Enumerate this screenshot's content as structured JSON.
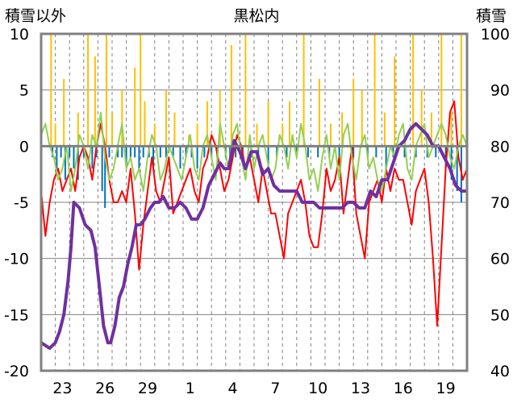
{
  "chart_data": {
    "type": "line",
    "title": "黒松内",
    "left_axis_label": "積雪以外",
    "right_axis_label": "積雪",
    "ylim_left": [
      -20,
      10
    ],
    "ylim_right": [
      40,
      100
    ],
    "yticks_left": [
      "10",
      "5",
      "0",
      "-5",
      "-10",
      "-15",
      "-20"
    ],
    "yticks_right": [
      "100",
      "90",
      "80",
      "70",
      "60",
      "50",
      "40"
    ],
    "x_range": [
      0,
      30
    ],
    "x_ticks": [
      {
        "x": 1.5,
        "label": "23"
      },
      {
        "x": 4.5,
        "label": "26"
      },
      {
        "x": 7.5,
        "label": "29"
      },
      {
        "x": 10.5,
        "label": "1"
      },
      {
        "x": 13.5,
        "label": "4"
      },
      {
        "x": 16.5,
        "label": "7"
      },
      {
        "x": 19.5,
        "label": "10"
      },
      {
        "x": 22.5,
        "label": "13"
      },
      {
        "x": 25.5,
        "label": "16"
      },
      {
        "x": 28.5,
        "label": "19"
      }
    ],
    "grid": true,
    "colors": {
      "temp_max": "#ff0000",
      "temp_min": "#92d050",
      "precipitation": "#ffc000",
      "snow_change": "#0070c0",
      "snow_depth": "#7030a0",
      "zero_line": "#808080",
      "grid": "#808080",
      "frame": "#808080"
    },
    "series": [
      {
        "key": "snow_depth",
        "axis": "right",
        "style": "line",
        "width": 4,
        "x": [
          0.0,
          0.6,
          1.0,
          1.3,
          1.6,
          1.9,
          2.1,
          2.3,
          2.7,
          3.1,
          3.5,
          3.8,
          4.1,
          4.4,
          4.7,
          4.9,
          5.2,
          5.5,
          5.8,
          6.1,
          6.4,
          6.7,
          7.0,
          7.3,
          7.7,
          8.0,
          8.3,
          8.6,
          9.0,
          9.4,
          9.8,
          10.2,
          10.6,
          11.0,
          11.4,
          11.8,
          12.2,
          12.6,
          12.9,
          13.2,
          13.6,
          14.0,
          14.4,
          14.8,
          15.2,
          15.6,
          16.0,
          16.4,
          16.8,
          17.2,
          17.6,
          18.0,
          18.4,
          18.8,
          19.2,
          19.6,
          20.0,
          20.4,
          20.8,
          21.2,
          21.6,
          22.0,
          22.4,
          22.8,
          23.2,
          23.6,
          24.0,
          24.4,
          24.8,
          25.2,
          25.6,
          26.0,
          26.4,
          26.8,
          27.2,
          27.6,
          28.0,
          28.4,
          28.8,
          29.2,
          29.6,
          30.0
        ],
        "values": [
          45,
          44,
          45,
          47,
          50,
          56,
          62,
          70,
          69,
          66,
          65,
          62,
          55,
          48,
          45,
          45,
          48,
          53,
          55,
          59,
          62,
          66,
          66,
          67,
          69,
          70,
          70,
          71,
          69,
          69,
          70,
          69,
          67,
          67,
          69,
          73,
          75,
          77,
          76,
          76,
          81,
          79,
          76,
          79,
          79,
          75,
          76,
          73,
          72,
          72,
          72,
          72,
          70,
          70,
          70,
          69,
          69,
          69,
          69,
          69,
          70,
          70,
          69,
          69,
          72,
          71,
          74,
          74,
          77,
          80,
          81,
          83,
          84,
          83,
          82,
          80,
          80,
          78,
          76,
          73,
          72,
          72
        ]
      },
      {
        "key": "temp_max",
        "axis": "left",
        "style": "line",
        "width": 2,
        "x": [
          0.0,
          0.3,
          0.6,
          0.9,
          1.2,
          1.5,
          1.8,
          2.1,
          2.4,
          2.7,
          3.0,
          3.3,
          3.6,
          3.9,
          4.2,
          4.5,
          4.8,
          5.1,
          5.4,
          5.7,
          6.0,
          6.3,
          6.6,
          6.9,
          7.2,
          7.5,
          7.8,
          8.1,
          8.4,
          8.7,
          9.0,
          9.3,
          9.6,
          9.9,
          10.2,
          10.5,
          10.8,
          11.1,
          11.4,
          11.7,
          12.0,
          12.3,
          12.6,
          12.9,
          13.2,
          13.5,
          13.8,
          14.1,
          14.4,
          14.7,
          15.0,
          15.3,
          15.6,
          15.9,
          16.2,
          16.5,
          16.8,
          17.1,
          17.4,
          17.7,
          18.0,
          18.3,
          18.6,
          18.9,
          19.2,
          19.5,
          19.8,
          20.1,
          20.4,
          20.7,
          21.0,
          21.3,
          21.6,
          21.9,
          22.2,
          22.5,
          22.8,
          23.1,
          23.4,
          23.7,
          24.0,
          24.3,
          24.6,
          24.9,
          25.2,
          25.5,
          25.8,
          26.1,
          26.4,
          26.7,
          27.0,
          27.3,
          27.6,
          27.9,
          28.2,
          28.5,
          28.8,
          29.1,
          29.4,
          29.7,
          30.0
        ],
        "values": [
          -4,
          -8,
          -5,
          -3,
          -2,
          -4,
          -3,
          -2,
          -4,
          -1,
          0,
          -1,
          -3,
          0,
          2,
          0,
          -3,
          -5,
          -5,
          -4,
          -5,
          -2,
          -6,
          -11,
          -7,
          -4,
          -1,
          -4,
          -5,
          -3,
          -1,
          -6,
          -5,
          -4,
          -3,
          -2,
          -4,
          -5,
          -2,
          -1,
          1,
          0,
          -2,
          -4,
          -3,
          -1,
          1,
          0,
          -2,
          -1,
          -3,
          -5,
          -2,
          -4,
          -6,
          -6,
          -8,
          -10,
          -6,
          -5,
          -4,
          -3,
          -5,
          -8,
          -9,
          -9,
          -6,
          -2,
          -4,
          -3,
          -1,
          -6,
          -3,
          0,
          -6,
          -8,
          -10,
          -5,
          -4,
          -3,
          -5,
          -2,
          -4,
          -2,
          -3,
          -3,
          -5,
          -7,
          -4,
          -3,
          -2,
          -5,
          -10,
          -16,
          -9,
          -2,
          3,
          4,
          -1,
          -3,
          -2
        ]
      },
      {
        "key": "temp_min",
        "axis": "left",
        "style": "line",
        "width": 2,
        "x": [
          0.0,
          0.3,
          0.6,
          0.9,
          1.2,
          1.5,
          1.8,
          2.1,
          2.4,
          2.7,
          3.0,
          3.3,
          3.6,
          3.9,
          4.2,
          4.5,
          4.8,
          5.1,
          5.4,
          5.7,
          6.0,
          6.3,
          6.6,
          6.9,
          7.2,
          7.5,
          7.8,
          8.1,
          8.4,
          8.7,
          9.0,
          9.3,
          9.6,
          9.9,
          10.2,
          10.5,
          10.8,
          11.1,
          11.4,
          11.7,
          12.0,
          12.3,
          12.6,
          12.9,
          13.2,
          13.5,
          13.8,
          14.1,
          14.4,
          14.7,
          15.0,
          15.3,
          15.6,
          15.9,
          16.2,
          16.5,
          16.8,
          17.1,
          17.4,
          17.7,
          18.0,
          18.3,
          18.6,
          18.9,
          19.2,
          19.5,
          19.8,
          20.1,
          20.4,
          20.7,
          21.0,
          21.3,
          21.6,
          21.9,
          22.2,
          22.5,
          22.8,
          23.1,
          23.4,
          23.7,
          24.0,
          24.3,
          24.6,
          24.9,
          25.2,
          25.5,
          25.8,
          26.1,
          26.4,
          26.7,
          27.0,
          27.3,
          27.6,
          27.9,
          28.2,
          28.5,
          28.8,
          29.1,
          29.4,
          29.7,
          30.0
        ],
        "values": [
          1,
          2,
          0,
          -1,
          -3,
          -2,
          0,
          -4,
          -2,
          1,
          0,
          -2,
          1,
          0,
          3,
          -1,
          -3,
          -2,
          0,
          2,
          -2,
          -1,
          -3,
          -2,
          -4,
          -1,
          1,
          0,
          -3,
          -2,
          0,
          -1,
          -2,
          -3,
          -1,
          1,
          -2,
          -3,
          0,
          1,
          -1,
          -3,
          2,
          0,
          -2,
          1,
          2,
          -1,
          -3,
          1,
          -2,
          0,
          1,
          -1,
          -3,
          -2,
          1,
          0,
          -2,
          1,
          -1,
          2,
          0,
          -3,
          -2,
          -4,
          -1,
          1,
          -2,
          0,
          -3,
          1,
          2,
          -1,
          -3,
          0,
          1,
          -2,
          -1,
          -3,
          -4,
          -2,
          0,
          -1,
          1,
          2,
          -2,
          -3,
          0,
          1,
          2,
          -1,
          0,
          1,
          2,
          1,
          -1,
          -2,
          0,
          1,
          0
        ]
      },
      {
        "key": "precipitation",
        "axis": "left",
        "style": "bars",
        "width": 2,
        "x": [
          0.7,
          1.0,
          1.6,
          2.6,
          3.3,
          3.8,
          4.6,
          5.0,
          5.7,
          6.6,
          7.0,
          7.3,
          8.0,
          8.8,
          9.4,
          10.4,
          11.0,
          11.7,
          12.6,
          13.4,
          14.4,
          15.2,
          16.0,
          17.0,
          17.5,
          18.5,
          19.6,
          20.4,
          21.2,
          22.0,
          22.6,
          23.5,
          24.2,
          24.9,
          26.2,
          26.8,
          27.5,
          28.2,
          28.9,
          29.6
        ],
        "values": [
          10,
          2,
          6,
          3,
          10,
          8,
          10,
          3,
          5,
          7,
          10,
          4,
          2,
          5,
          3,
          1,
          2,
          4,
          5,
          9,
          10,
          2,
          4,
          2,
          4,
          10,
          6,
          2,
          3,
          6,
          5,
          10,
          3,
          8,
          10,
          5,
          3,
          10,
          3,
          10
        ]
      },
      {
        "key": "snow_change",
        "axis": "left",
        "style": "bars",
        "width": 2,
        "x": [
          0.8,
          1.1,
          1.4,
          1.7,
          2.0,
          2.3,
          2.6,
          3.0,
          3.6,
          3.9,
          4.3,
          4.5,
          4.8,
          5.4,
          5.7,
          6.0,
          6.3,
          6.6,
          6.9,
          7.2,
          7.6,
          7.9,
          8.4,
          8.8,
          9.3,
          9.8,
          10.2,
          10.6,
          11.0,
          11.5,
          12.0,
          12.4,
          13.0,
          13.3,
          13.7,
          14.2,
          14.8,
          15.3,
          16.0,
          16.6,
          17.3,
          18.0,
          18.8,
          19.5,
          20.3,
          21.0,
          22.0,
          23.0,
          23.6,
          24.3,
          24.8,
          25.6,
          26.4,
          27.2,
          27.8,
          28.5,
          28.9,
          29.3,
          29.6
        ],
        "values": [
          -1,
          -2,
          -1,
          -3,
          -1,
          -2,
          -3,
          -1,
          -2,
          -1,
          -4,
          -5.5,
          -1,
          -1,
          -1,
          -2,
          -1,
          -1,
          -2,
          -1,
          -1,
          -2,
          -1,
          -1,
          -1,
          -2,
          -1,
          -1,
          -2,
          -1,
          -1,
          -1,
          -1,
          -2,
          -1,
          -1,
          -1,
          -1,
          -2,
          -1,
          -1,
          -1,
          -1,
          -1,
          -1,
          -1,
          -1,
          -1,
          -1,
          -2,
          -1,
          -1,
          -1,
          -1,
          -1,
          -2,
          -3,
          -4,
          -5
        ]
      }
    ]
  }
}
